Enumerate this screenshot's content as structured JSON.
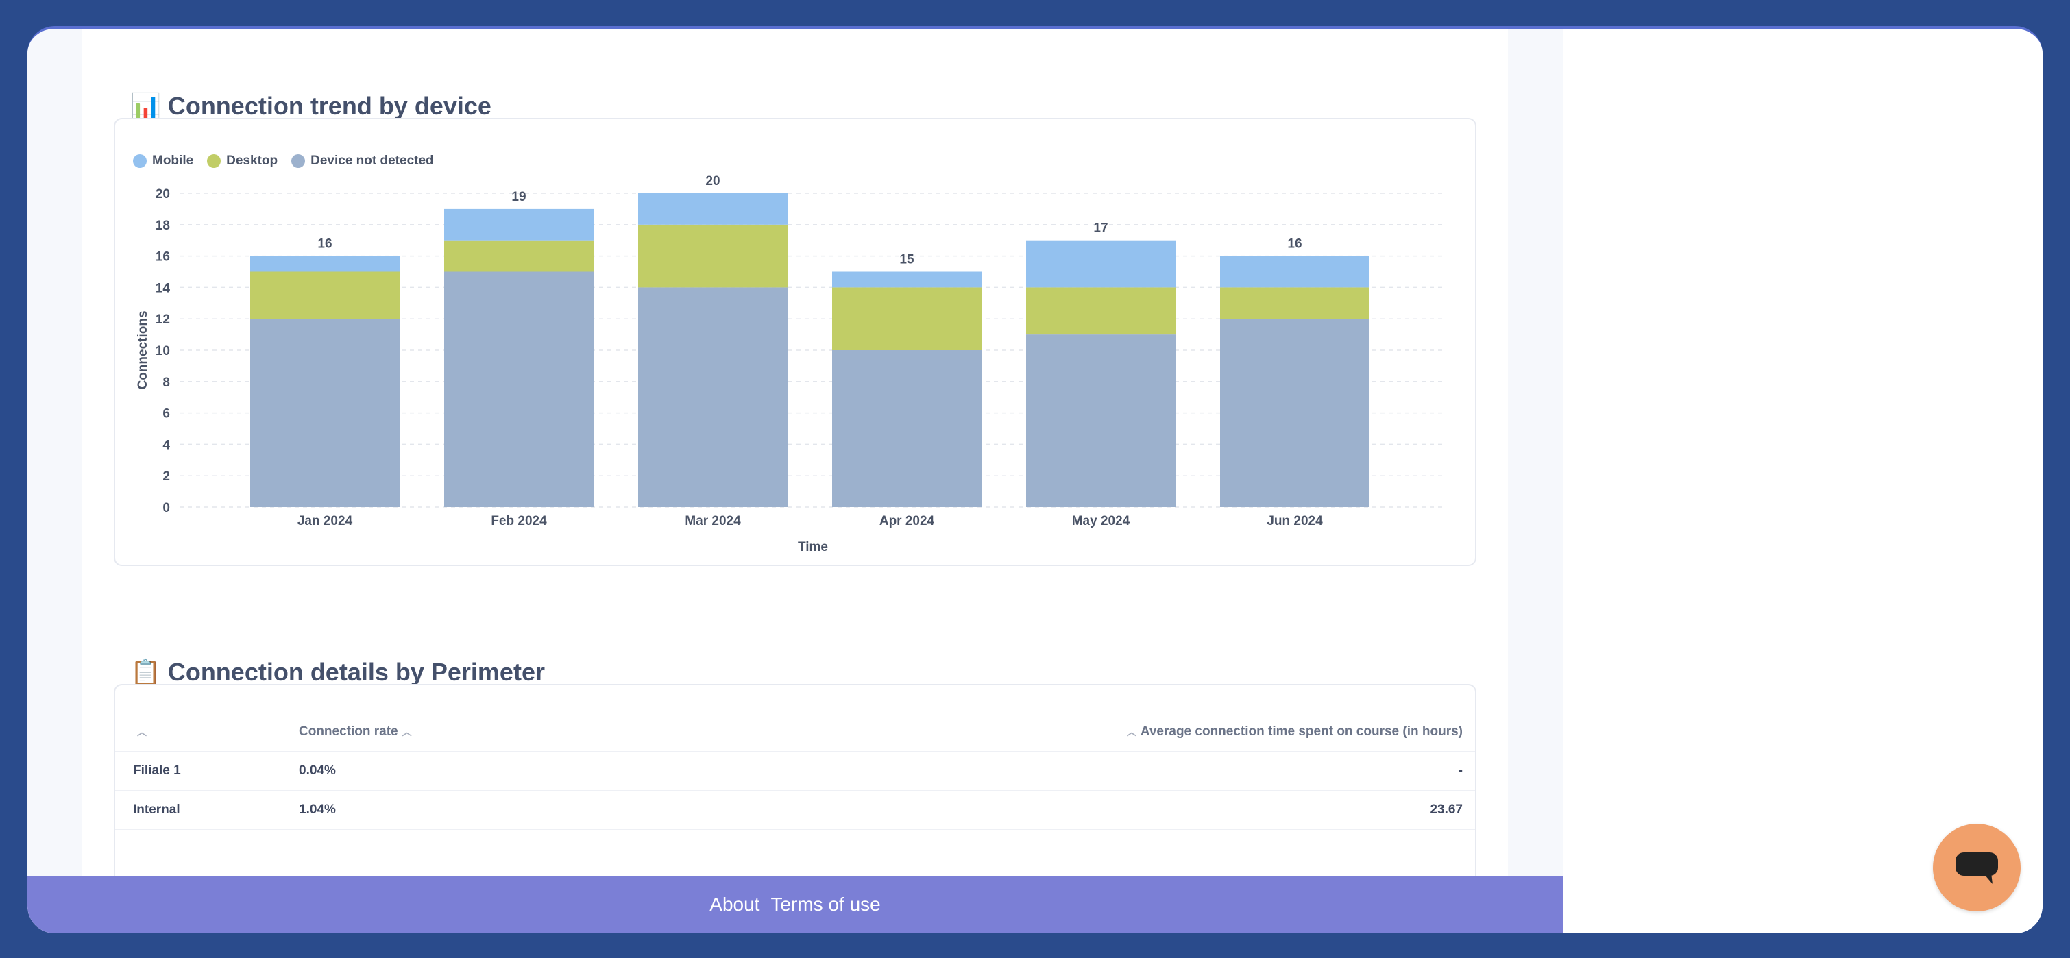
{
  "sections": {
    "trend": {
      "icon": "📊",
      "title": "Connection trend by device"
    },
    "details": {
      "icon": "📋",
      "title": "Connection details by Perimeter"
    }
  },
  "colors": {
    "mobile": "#93c1ef",
    "desktop": "#c1cd66",
    "not_detected": "#9cb1cd",
    "footer": "#7b7fd6",
    "chat": "#f1a06b"
  },
  "chart_data": {
    "type": "bar",
    "stacked": true,
    "categories": [
      "Jan 2024",
      "Feb 2024",
      "Mar 2024",
      "Apr 2024",
      "May 2024",
      "Jun 2024"
    ],
    "series": [
      {
        "name": "Device not detected",
        "color": "#9cb1cd",
        "values": [
          12,
          15,
          14,
          10,
          11,
          12
        ]
      },
      {
        "name": "Desktop",
        "color": "#c1cd66",
        "values": [
          3,
          2,
          4,
          4,
          3,
          2
        ]
      },
      {
        "name": "Mobile",
        "color": "#93c1ef",
        "values": [
          1,
          2,
          2,
          1,
          3,
          2
        ]
      }
    ],
    "totals": [
      16,
      19,
      20,
      15,
      17,
      16
    ],
    "legend": [
      "Mobile",
      "Desktop",
      "Device not detected"
    ],
    "yticks": [
      0,
      2,
      4,
      6,
      8,
      10,
      12,
      14,
      16,
      18,
      20
    ],
    "ylim": [
      0,
      20
    ],
    "xlabel": "Time",
    "ylabel": "Connections",
    "grid": true,
    "legend_position": "top-left"
  },
  "table": {
    "columns": [
      "",
      "Connection rate",
      "Average connection time spent on course (in hours)"
    ],
    "rows": [
      {
        "perimeter": "Filiale 1",
        "rate": "0.04%",
        "avg_time": "-"
      },
      {
        "perimeter": "Internal",
        "rate": "1.04%",
        "avg_time": "23.67"
      }
    ]
  },
  "footer": {
    "about": "About",
    "terms": "Terms of use"
  }
}
